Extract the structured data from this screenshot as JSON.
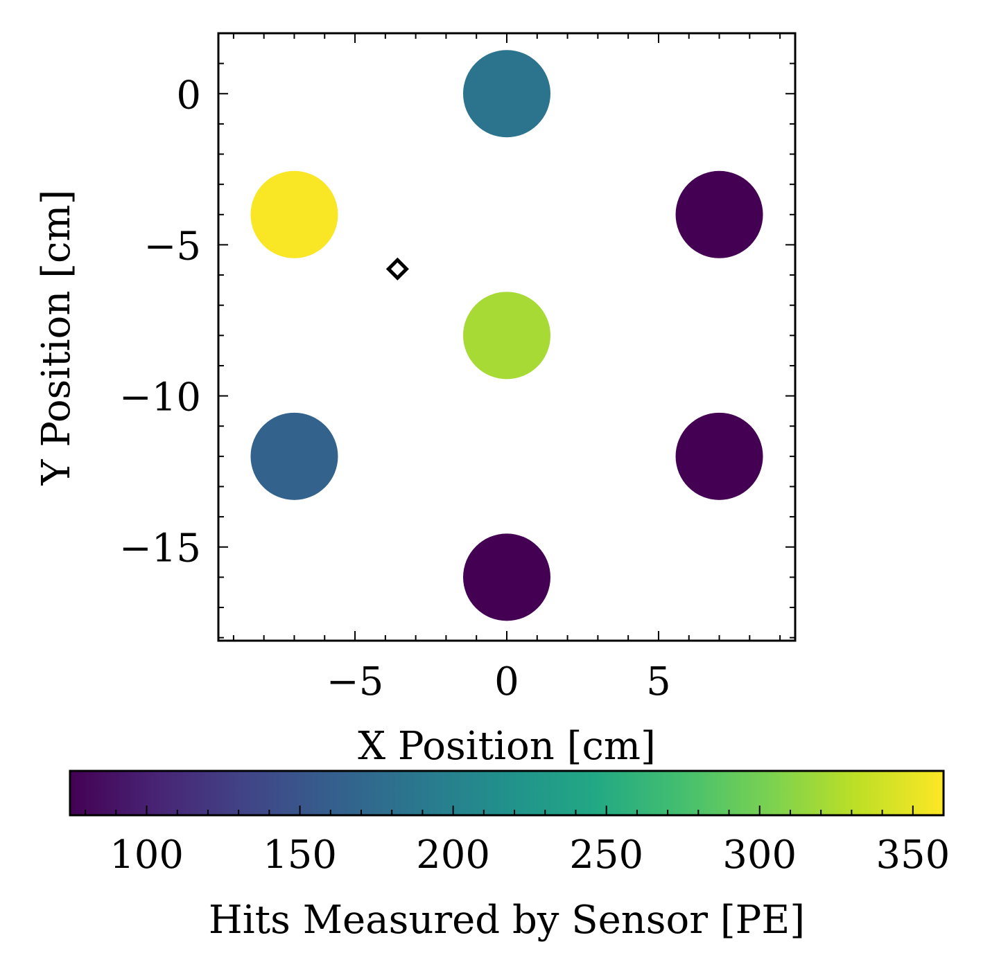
{
  "chart_data": {
    "type": "scatter",
    "title": "",
    "xlabel": "X Position [cm]",
    "ylabel": "Y Position [cm]",
    "xlim": [
      -9.5,
      9.5
    ],
    "ylim": [
      -18.1,
      2.0
    ],
    "xticks": [
      -5,
      0,
      5
    ],
    "yticks": [
      0,
      -5,
      -10,
      -15
    ],
    "grid": false,
    "colorscale": "viridis",
    "colorbar": {
      "label": "Hits Measured by Sensor [PE]",
      "range": [
        75,
        360
      ],
      "ticks": [
        100,
        150,
        200,
        250,
        300,
        350
      ],
      "orientation": "horizontal",
      "placement": "bottom"
    },
    "points": [
      {
        "x": 0,
        "y": 0,
        "value": 185
      },
      {
        "x": -7,
        "y": -4,
        "value": 358
      },
      {
        "x": 7,
        "y": -4,
        "value": 75
      },
      {
        "x": 0,
        "y": -8,
        "value": 322
      },
      {
        "x": -7,
        "y": -12,
        "value": 165
      },
      {
        "x": 7,
        "y": -12,
        "value": 75
      },
      {
        "x": 0,
        "y": -16,
        "value": 75
      }
    ],
    "marker": {
      "x": -3.6,
      "y": -5.8,
      "shape": "diamond"
    }
  }
}
